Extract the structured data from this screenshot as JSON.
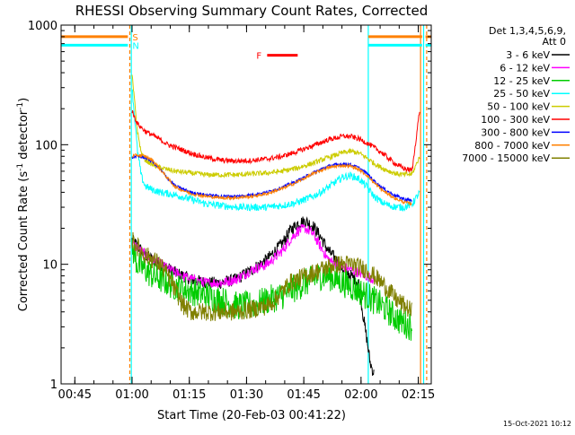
{
  "chart_data": {
    "type": "line",
    "title": "RHESSI Observing Summary Count Rates, Corrected",
    "xlabel": "Start Time (20-Feb-03 00:41:22)",
    "ylabel": "Corrected Count Rate (s",
    "ylabel_sup": "-1",
    "ylabel_mid": " detector",
    "ylabel_sup2": "-1",
    "ylabel_end": ")",
    "x_unit": "minutes after 00:41:22",
    "xlim": [
      0,
      97
    ],
    "ylim": [
      1,
      1000
    ],
    "y_scale": "log",
    "x_ticks": [
      {
        "label": "00:45",
        "x": 3.6
      },
      {
        "label": "01:00",
        "x": 18.6
      },
      {
        "label": "01:15",
        "x": 33.6
      },
      {
        "label": "01:30",
        "x": 48.6
      },
      {
        "label": "01:45",
        "x": 63.6
      },
      {
        "label": "02:00",
        "x": 78.6
      },
      {
        "label": "02:15",
        "x": 93.6
      }
    ],
    "y_ticks": [
      {
        "label": "1",
        "y": 1
      },
      {
        "label": "10",
        "y": 10
      },
      {
        "label": "100",
        "y": 100
      },
      {
        "label": "1000",
        "y": 1000
      }
    ],
    "legend": {
      "header1": "Det 1,3,4,5,6,9,",
      "header2": "Att 0",
      "placement": "right"
    },
    "series": [
      {
        "name": "3 - 6 keV",
        "color": "#000000",
        "x": [
          18.6,
          22,
          26,
          30,
          34,
          38,
          42,
          46,
          50,
          54,
          58,
          60,
          62,
          64,
          66,
          68,
          70,
          72,
          74,
          76,
          78,
          79,
          80,
          81,
          82
        ],
        "y": [
          16,
          12,
          10,
          8.5,
          7.5,
          7,
          7,
          7.5,
          9,
          11,
          15,
          19,
          22,
          23,
          21,
          17,
          13,
          11,
          9,
          8,
          7,
          4,
          2.5,
          1.5,
          1.2
        ]
      },
      {
        "name": "6 - 12 keV",
        "color": "#ff00ff",
        "x": [
          18.6,
          22,
          26,
          30,
          34,
          38,
          42,
          46,
          50,
          54,
          58,
          60,
          62,
          64,
          66,
          68,
          70,
          72,
          74,
          76,
          78,
          80,
          82
        ],
        "y": [
          15,
          12,
          10,
          8.5,
          7.5,
          7,
          7,
          7.5,
          9,
          10,
          13,
          16,
          19,
          20,
          18,
          14,
          11,
          10,
          9.5,
          9,
          8.5,
          8,
          7.5
        ]
      },
      {
        "name": "12 - 25 keV",
        "color": "#00cc00",
        "x": [
          18.6,
          20,
          22,
          24,
          26,
          28,
          30,
          34,
          38,
          42,
          46,
          50,
          54,
          58,
          60,
          62,
          64,
          66,
          68,
          70,
          72,
          74,
          76,
          78,
          80,
          82,
          84,
          86,
          88,
          90,
          92
        ],
        "y": [
          14,
          10,
          9,
          8,
          7.5,
          7,
          6.5,
          6,
          5.5,
          5,
          4.5,
          4.5,
          5,
          5.5,
          6,
          6.5,
          7,
          7.5,
          8,
          8,
          7.5,
          7,
          6.5,
          6,
          5.5,
          5,
          4.5,
          4,
          3.5,
          3.2,
          3
        ]
      },
      {
        "name": "25 - 50 keV",
        "color": "#00ffff",
        "x": [
          18.6,
          20,
          21,
          22,
          24,
          26,
          28,
          30,
          34,
          38,
          42,
          46,
          50,
          54,
          58,
          62,
          66,
          68,
          70,
          72,
          74,
          76,
          78,
          80,
          82,
          84,
          86,
          88,
          90,
          92,
          94
        ],
        "y": [
          300,
          90,
          55,
          45,
          42,
          40,
          39,
          38,
          35,
          32,
          31,
          30,
          30,
          30,
          31,
          33,
          37,
          40,
          44,
          49,
          54,
          55,
          52,
          45,
          37,
          33,
          31,
          30,
          30,
          32,
          40
        ]
      },
      {
        "name": "50 - 100 keV",
        "color": "#cccc00",
        "x": [
          18.6,
          20,
          21,
          22,
          24,
          26,
          28,
          30,
          34,
          38,
          42,
          46,
          50,
          54,
          58,
          62,
          66,
          68,
          70,
          72,
          74,
          76,
          78,
          80,
          82,
          84,
          86,
          88,
          90,
          92,
          94
        ],
        "y": [
          380,
          130,
          85,
          75,
          68,
          64,
          62,
          60,
          58,
          56,
          56,
          56,
          57,
          58,
          60,
          64,
          70,
          74,
          78,
          82,
          86,
          88,
          85,
          78,
          70,
          64,
          60,
          57,
          56,
          57,
          80
        ]
      },
      {
        "name": "100 - 300 keV",
        "color": "#ff0000",
        "x": [
          18.6,
          20,
          22,
          24,
          26,
          28,
          30,
          34,
          38,
          42,
          46,
          50,
          54,
          58,
          62,
          66,
          68,
          70,
          72,
          74,
          76,
          78,
          80,
          82,
          84,
          86,
          88,
          90,
          92,
          94
        ],
        "y": [
          190,
          150,
          130,
          120,
          110,
          100,
          95,
          85,
          78,
          74,
          73,
          74,
          76,
          80,
          88,
          98,
          104,
          110,
          114,
          118,
          117,
          112,
          104,
          95,
          86,
          76,
          68,
          63,
          61,
          200
        ]
      },
      {
        "name": "300 - 800 keV",
        "color": "#0000ff",
        "x": [
          18.6,
          20,
          22,
          24,
          26,
          28,
          30,
          34,
          38,
          42,
          46,
          50,
          54,
          58,
          62,
          66,
          68,
          70,
          72,
          74,
          76,
          78,
          80,
          82,
          84,
          86,
          88,
          90,
          92
        ],
        "y": [
          78,
          80,
          78,
          72,
          62,
          52,
          45,
          40,
          38,
          37,
          37,
          38,
          40,
          44,
          50,
          58,
          62,
          66,
          68,
          69,
          68,
          64,
          58,
          50,
          44,
          40,
          37,
          35,
          34
        ]
      },
      {
        "name": "800 - 7000 keV",
        "color": "#ff8000",
        "x": [
          18.6,
          20,
          22,
          24,
          26,
          28,
          30,
          34,
          38,
          42,
          46,
          50,
          54,
          58,
          62,
          66,
          68,
          70,
          72,
          74,
          76,
          78,
          80,
          82,
          84,
          86,
          88,
          90,
          92
        ],
        "y": [
          80,
          82,
          80,
          74,
          62,
          52,
          44,
          39,
          37,
          36,
          36,
          37,
          39,
          43,
          49,
          57,
          61,
          64,
          66,
          67,
          66,
          62,
          56,
          48,
          42,
          38,
          35,
          33,
          32
        ]
      },
      {
        "name": "7000 - 15000 keV",
        "color": "#808000",
        "x": [
          18.6,
          20,
          22,
          24,
          26,
          28,
          30,
          32,
          34,
          38,
          42,
          46,
          50,
          54,
          56,
          58,
          60,
          62,
          64,
          66,
          68,
          70,
          72,
          74,
          76,
          78,
          80,
          82,
          84,
          86,
          88,
          90,
          92
        ],
        "y": [
          16,
          14,
          12,
          11,
          10,
          8,
          6,
          4.5,
          4,
          4,
          4,
          4,
          4.2,
          4.5,
          5,
          6,
          7,
          7.5,
          8,
          8.5,
          9,
          9.5,
          10,
          10,
          10,
          9.5,
          9,
          8,
          7,
          6,
          5,
          4.5,
          4
        ]
      }
    ],
    "flags": [
      {
        "label": "S",
        "color": "#ff8000",
        "y": 800,
        "segments": [
          [
            0,
            17.5
          ],
          [
            80.5,
            94.6
          ],
          [
            95.5,
            97
          ]
        ]
      },
      {
        "label": "N",
        "color": "#00ffff",
        "y": 680,
        "segments": [
          [
            0,
            17.5
          ],
          [
            80.5,
            94.6
          ],
          [
            95.5,
            97
          ]
        ]
      },
      {
        "label": "F",
        "color": "#ff0000",
        "y": 560,
        "segments": [
          [
            54,
            62
          ]
        ]
      }
    ],
    "vlines": [
      {
        "x": 18.0,
        "color": "#ff8000",
        "style": "dashed"
      },
      {
        "x": 18.4,
        "color": "#00ffff",
        "style": "solid"
      },
      {
        "x": 80.5,
        "color": "#00ffff",
        "style": "solid"
      },
      {
        "x": 94.2,
        "color": "#ff8000",
        "style": "solid"
      },
      {
        "x": 95.0,
        "color": "#00ffff",
        "style": "solid"
      },
      {
        "x": 95.8,
        "color": "#ff8000",
        "style": "dashed"
      }
    ]
  },
  "footer": {
    "timestamp": "15-Oct-2021 10:12"
  }
}
